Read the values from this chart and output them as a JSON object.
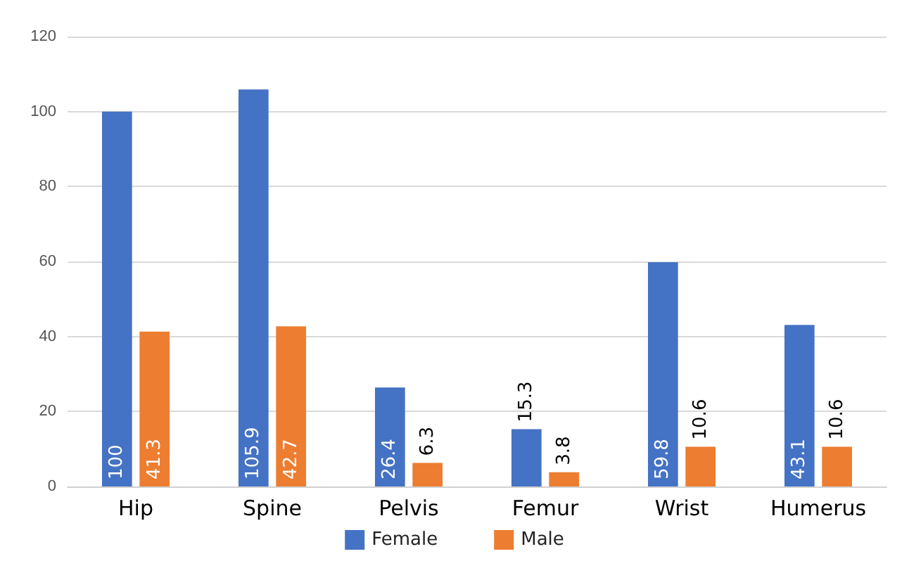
{
  "chart_data": {
    "type": "bar",
    "categories": [
      "Hip",
      "Spine",
      "Pelvis",
      "Femur",
      "Wrist",
      "Humerus"
    ],
    "series": [
      {
        "name": "Female",
        "color": "#4472c4",
        "values": [
          100,
          105.9,
          26.4,
          15.3,
          59.8,
          43.1
        ]
      },
      {
        "name": "Male",
        "color": "#ed7d31",
        "values": [
          41.3,
          42.7,
          6.3,
          3.8,
          10.6,
          10.6
        ]
      }
    ],
    "ylim": [
      0,
      120
    ],
    "yticks": [
      0,
      20,
      40,
      60,
      80,
      100,
      120
    ],
    "grid": "y",
    "legend": "bottom",
    "data_labels": true
  }
}
